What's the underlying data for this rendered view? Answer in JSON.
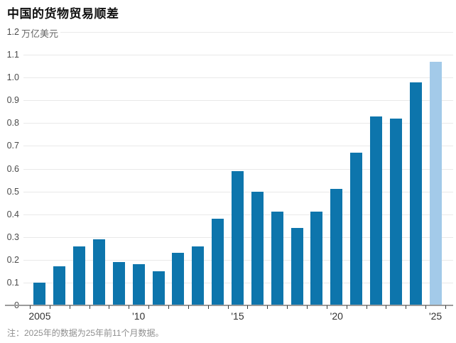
{
  "title": "中国的货物贸易顺差",
  "y_axis": {
    "unit_label": "万亿美元",
    "tick_labels": [
      "1.2",
      "1.1",
      "1.0",
      "0.9",
      "0.8",
      "0.7",
      "0.6",
      "0.5",
      "0.4",
      "0.3",
      "0.2",
      "0.1",
      "0"
    ],
    "tick_values": [
      1.2,
      1.1,
      1.0,
      0.9,
      0.8,
      0.7,
      0.6,
      0.5,
      0.4,
      0.3,
      0.2,
      0.1,
      0
    ]
  },
  "x_axis": {
    "labels": [
      {
        "bar_index": 0,
        "text": "2005"
      },
      {
        "bar_index": 5,
        "text": "'10"
      },
      {
        "bar_index": 10,
        "text": "'15"
      },
      {
        "bar_index": 15,
        "text": "'20"
      },
      {
        "bar_index": 20,
        "text": "'25"
      }
    ]
  },
  "note": "注：2025年的数据为25年前11个月数据。",
  "colors": {
    "bar": "#0d75ac",
    "bar_highlight": "#a3cae9",
    "gridline": "#e9e9e9",
    "axis_line": "#9b9b9b",
    "tick_mark": "#3a3a3a",
    "axis_text": "#4a4a4a",
    "x_axis_text": "#333333",
    "note_text": "#8f8f8f",
    "title_text": "#111111"
  },
  "chart_data": {
    "type": "bar",
    "title": "中国的货物贸易顺差",
    "ylabel": "万亿美元",
    "ylim": [
      0,
      1.2
    ],
    "grid": true,
    "categories": [
      2005,
      2006,
      2007,
      2008,
      2009,
      2010,
      2011,
      2012,
      2013,
      2014,
      2015,
      2016,
      2017,
      2018,
      2019,
      2020,
      2021,
      2022,
      2023,
      2024,
      2025
    ],
    "values": [
      0.1,
      0.17,
      0.26,
      0.29,
      0.19,
      0.18,
      0.15,
      0.23,
      0.26,
      0.38,
      0.59,
      0.5,
      0.41,
      0.34,
      0.41,
      0.51,
      0.67,
      0.83,
      0.82,
      0.98,
      1.07
    ],
    "highlight_last_bar": true,
    "x_tick_labels": [
      "2005",
      "'10",
      "'15",
      "'20",
      "'25"
    ],
    "annotation": "2025年的数据为25年前11个月数据"
  }
}
